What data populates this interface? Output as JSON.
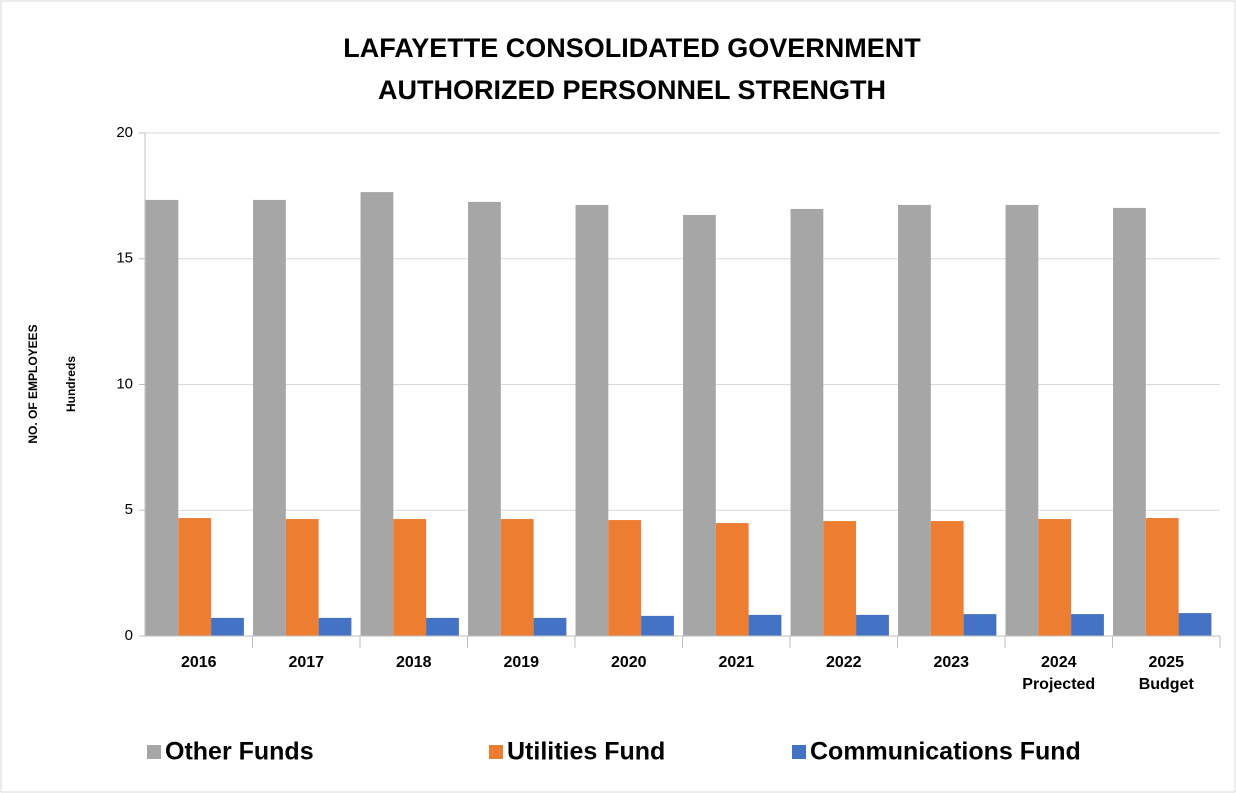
{
  "chart_data": {
    "type": "bar",
    "title": "LAFAYETTE CONSOLIDATED GOVERNMENT\nAUTHORIZED PERSONNEL STRENGTH",
    "y_label": "NO. OF EMPLOYEES",
    "y_unit": "Hundreds",
    "categories": [
      "2016",
      "2017",
      "2018",
      "2019",
      "2020",
      "2021",
      "2022",
      "2023",
      "2024\nProjected",
      "2025\nBudget"
    ],
    "series": [
      {
        "name": "Other Funds",
        "color": "#a6a6a6",
        "values": [
          17.34,
          17.34,
          17.65,
          17.26,
          17.14,
          16.74,
          16.98,
          17.14,
          17.14,
          17.02
        ]
      },
      {
        "name": "Utilities Fund",
        "color": "#ed7d31",
        "values": [
          4.69,
          4.65,
          4.65,
          4.65,
          4.61,
          4.49,
          4.57,
          4.57,
          4.65,
          4.69
        ]
      },
      {
        "name": "Communications Fund",
        "color": "#4472c4",
        "values": [
          0.72,
          0.72,
          0.72,
          0.72,
          0.8,
          0.84,
          0.84,
          0.87,
          0.87,
          0.91
        ]
      }
    ],
    "ylim": [
      0,
      20
    ],
    "yticks": [
      0,
      5,
      10,
      15,
      20
    ],
    "grid": true,
    "legend": "bottom"
  }
}
